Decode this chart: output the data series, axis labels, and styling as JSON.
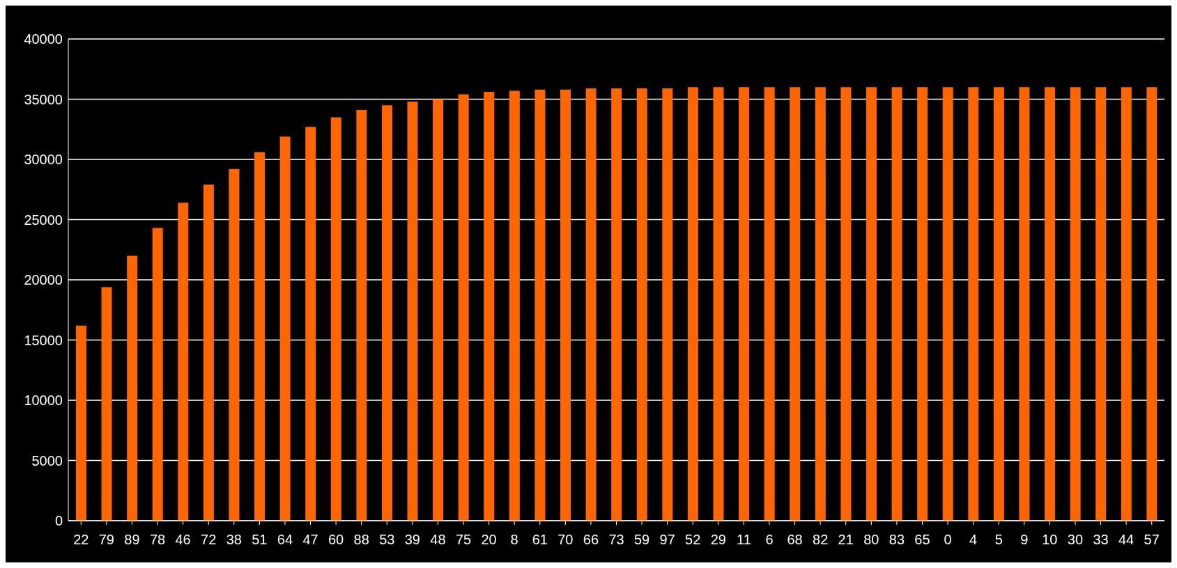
{
  "chart_data": {
    "type": "bar",
    "categories": [
      "22",
      "79",
      "89",
      "78",
      "46",
      "72",
      "38",
      "51",
      "64",
      "47",
      "60",
      "88",
      "53",
      "39",
      "48",
      "75",
      "20",
      "8",
      "61",
      "70",
      "66",
      "73",
      "59",
      "97",
      "52",
      "29",
      "11",
      "6",
      "68",
      "82",
      "21",
      "80",
      "83",
      "65",
      "0",
      "4",
      "5",
      "9",
      "10",
      "30",
      "33",
      "44",
      "57"
    ],
    "values": [
      16200,
      19400,
      22000,
      24300,
      26400,
      27900,
      29200,
      30600,
      31900,
      32700,
      33500,
      34100,
      34500,
      34800,
      35000,
      35400,
      35600,
      35700,
      35800,
      35800,
      35900,
      35900,
      35900,
      35900,
      36000,
      36000,
      36000,
      36000,
      36000,
      36000,
      36000,
      36000,
      36000,
      36000,
      36000,
      36000,
      36000,
      36000,
      36000,
      36000,
      36000,
      36000,
      36000
    ],
    "color": "#ff6600",
    "ylim": [
      0,
      40000
    ],
    "yticks": [
      0,
      5000,
      10000,
      15000,
      20000,
      25000,
      30000,
      35000,
      40000
    ],
    "grid": "y"
  }
}
